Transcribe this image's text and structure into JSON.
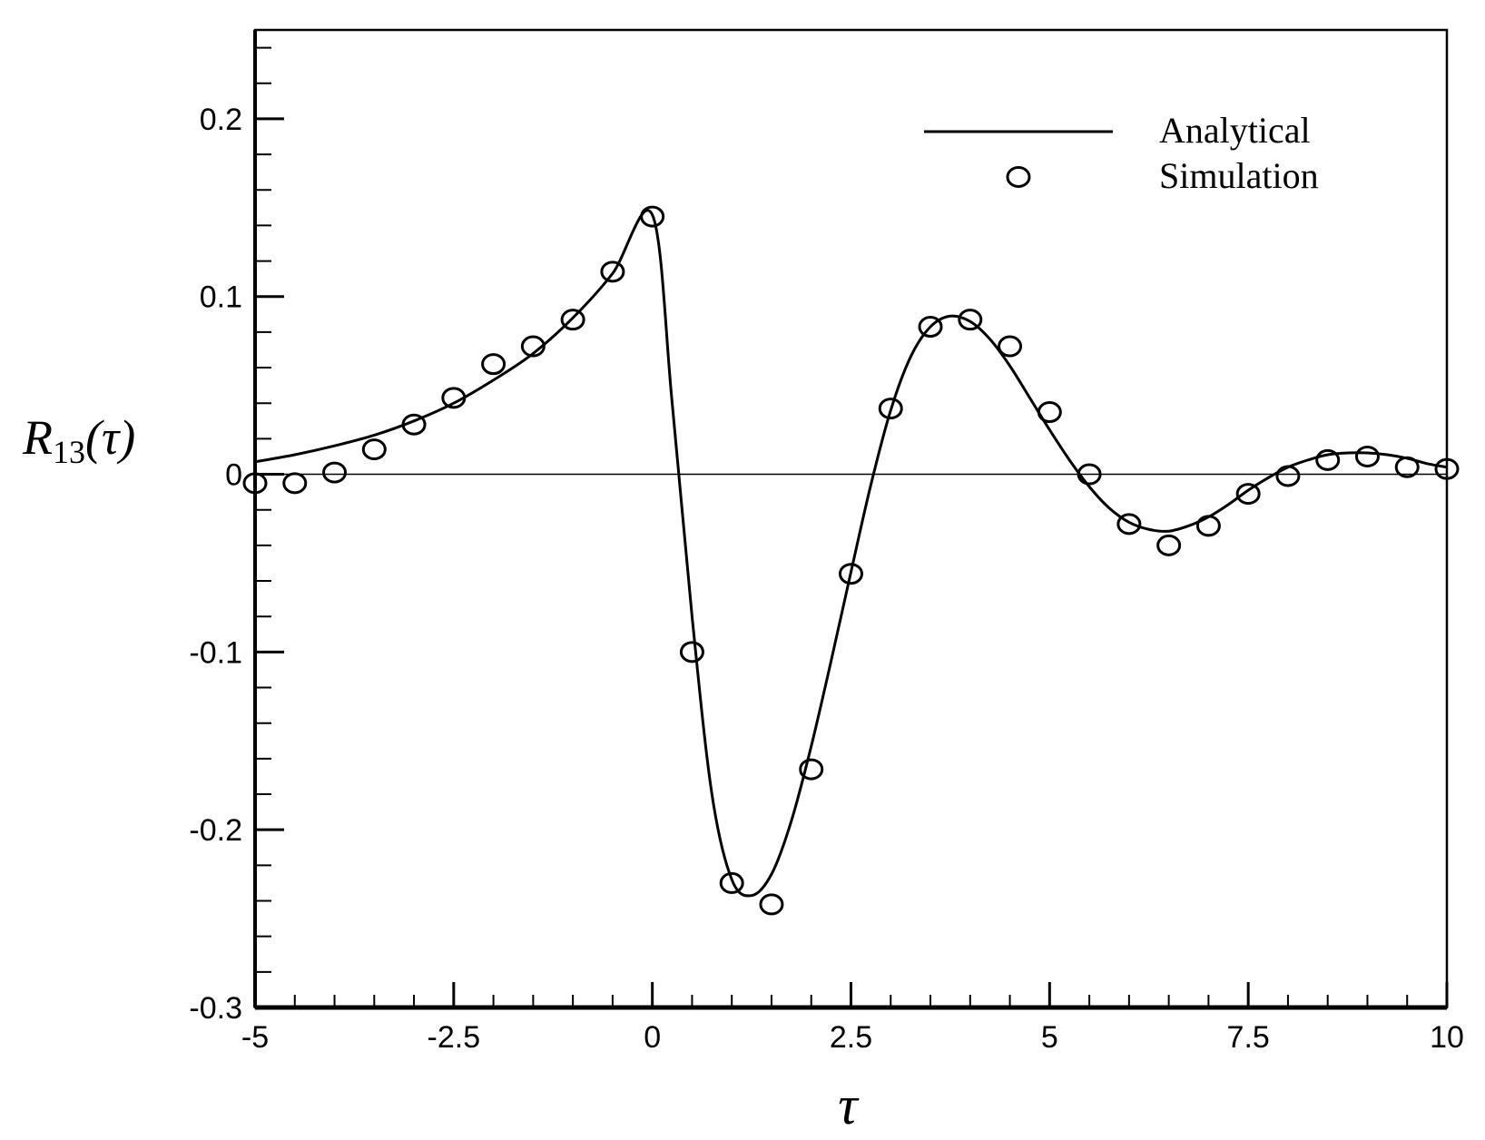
{
  "chart_data": {
    "type": "line",
    "xlabel": "τ",
    "ylabel_main": "R",
    "ylabel_sub": "13",
    "ylabel_arg": "(τ)",
    "xlim": [
      -5,
      10
    ],
    "ylim": [
      -0.3,
      0.25
    ],
    "x_ticks": [
      -5,
      -2.5,
      0,
      2.5,
      5,
      7.5,
      10
    ],
    "x_tick_labels": [
      "-5",
      "-2.5",
      "0",
      "2.5",
      "5",
      "7.5",
      "10"
    ],
    "y_ticks": [
      -0.3,
      -0.2,
      -0.1,
      0,
      0.1,
      0.2
    ],
    "y_tick_labels": [
      "-0.3",
      "-0.2",
      "-0.1",
      "0",
      "0.1",
      "0.2"
    ],
    "grid": false,
    "zero_line": true,
    "legend_position": "top-right",
    "series": [
      {
        "name": "Analytical",
        "style": "line",
        "x": [
          -5,
          -4.5,
          -4,
          -3.5,
          -3,
          -2.5,
          -2,
          -1.5,
          -1,
          -0.5,
          0,
          0.25,
          0.5,
          0.75,
          1,
          1.25,
          1.5,
          1.75,
          2,
          2.25,
          2.5,
          2.75,
          3,
          3.25,
          3.5,
          3.75,
          4,
          4.25,
          4.5,
          4.75,
          5,
          5.25,
          5.5,
          5.75,
          6,
          6.25,
          6.5,
          6.75,
          7,
          7.25,
          7.5,
          7.75,
          8,
          8.25,
          8.5,
          8.75,
          9,
          9.25,
          9.5,
          9.75,
          10
        ],
        "y": [
          0.007,
          0.011,
          0.016,
          0.022,
          0.03,
          0.04,
          0.053,
          0.068,
          0.088,
          0.113,
          0.146,
          0.04,
          -0.08,
          -0.18,
          -0.228,
          -0.237,
          -0.225,
          -0.195,
          -0.153,
          -0.105,
          -0.055,
          -0.006,
          0.036,
          0.066,
          0.083,
          0.089,
          0.086,
          0.076,
          0.061,
          0.043,
          0.025,
          0.008,
          -0.007,
          -0.019,
          -0.027,
          -0.031,
          -0.032,
          -0.029,
          -0.024,
          -0.017,
          -0.009,
          -0.002,
          0.004,
          0.008,
          0.011,
          0.012,
          0.012,
          0.011,
          0.009,
          0.006,
          0.004
        ]
      },
      {
        "name": "Simulation",
        "style": "markers",
        "x": [
          -5,
          -4.5,
          -4,
          -3.5,
          -3,
          -2.5,
          -2,
          -1.5,
          -1,
          -0.5,
          0,
          0.5,
          1,
          1.5,
          2,
          2.5,
          3,
          3.5,
          4,
          4.5,
          5,
          5.5,
          6,
          6.5,
          7,
          7.5,
          8,
          8.5,
          9,
          9.5,
          10
        ],
        "y": [
          -0.005,
          -0.005,
          0.001,
          0.014,
          0.028,
          0.043,
          0.062,
          0.072,
          0.087,
          0.114,
          0.145,
          -0.1,
          -0.23,
          -0.242,
          -0.166,
          -0.056,
          0.037,
          0.083,
          0.087,
          0.072,
          0.035,
          0.0,
          -0.028,
          -0.04,
          -0.029,
          -0.011,
          -0.001,
          0.008,
          0.01,
          0.004,
          0.003
        ]
      }
    ]
  }
}
